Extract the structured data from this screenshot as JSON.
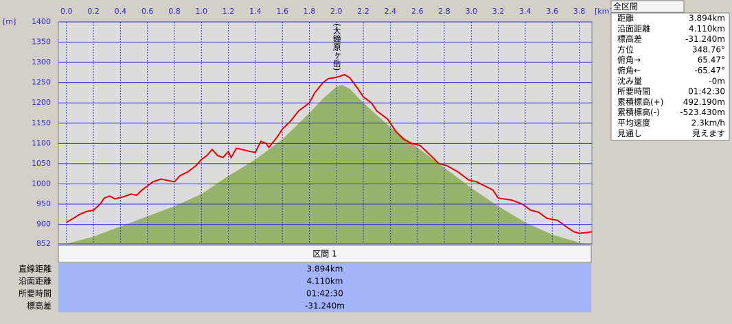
{
  "chart_data": {
    "type": "line",
    "x_unit": "[km]",
    "y_unit": "[m]",
    "annotation": "(大鐘原ヶ岳)",
    "annotation_x": 2.0,
    "xlim": [
      -0.06,
      3.894
    ],
    "ylim": [
      852,
      1400
    ],
    "xticks": [
      {
        "value": 0,
        "label": "0.0"
      },
      0.2,
      0.4,
      0.6,
      0.8,
      {
        "value": 1,
        "label": "1.0"
      },
      1.2,
      1.4,
      1.6,
      1.8,
      {
        "value": 2,
        "label": "2.0"
      },
      2.2,
      2.4,
      2.6,
      2.8,
      {
        "value": 3,
        "label": "3.0"
      },
      3.2,
      3.4,
      3.6,
      3.8
    ],
    "yticks": [
      852,
      900,
      950,
      1000,
      1050,
      1100,
      1150,
      1200,
      1250,
      1300,
      1350,
      1400
    ],
    "grid": true,
    "series": [
      {
        "color": "#98b46c",
        "fill": true,
        "x": [
          0,
          0.2,
          0.4,
          0.6,
          0.8,
          1.0,
          1.2,
          1.4,
          1.6,
          1.8,
          1.9,
          2.0,
          2.04,
          2.1,
          2.2,
          2.4,
          2.6,
          2.8,
          3.0,
          3.2,
          3.4,
          3.6,
          3.8,
          3.85
        ],
        "values": [
          852,
          870,
          895,
          920,
          945,
          975,
          1020,
          1060,
          1110,
          1175,
          1210,
          1240,
          1245,
          1235,
          1200,
          1140,
          1090,
          1040,
          990,
          945,
          905,
          875,
          855,
          852
        ]
      },
      {
        "color": "#e80000",
        "fill": false,
        "x": [
          0,
          0.05,
          0.1,
          0.15,
          0.2,
          0.25,
          0.28,
          0.32,
          0.36,
          0.42,
          0.48,
          0.52,
          0.56,
          0.6,
          0.64,
          0.7,
          0.76,
          0.8,
          0.84,
          0.9,
          0.96,
          1.0,
          1.04,
          1.08,
          1.12,
          1.16,
          1.2,
          1.22,
          1.26,
          1.3,
          1.36,
          1.4,
          1.44,
          1.48,
          1.5,
          1.56,
          1.6,
          1.66,
          1.72,
          1.76,
          1.8,
          1.84,
          1.9,
          1.94,
          1.98,
          2.02,
          2.06,
          2.1,
          2.16,
          2.2,
          2.26,
          2.3,
          2.38,
          2.44,
          2.5,
          2.56,
          2.62,
          2.7,
          2.76,
          2.82,
          2.9,
          2.98,
          3.04,
          3.1,
          3.16,
          3.2,
          3.3,
          3.38,
          3.44,
          3.5,
          3.56,
          3.64,
          3.7,
          3.76,
          3.8,
          3.86,
          3.894
        ],
        "values": [
          905,
          915,
          925,
          932,
          935,
          950,
          965,
          970,
          963,
          968,
          975,
          972,
          985,
          995,
          1005,
          1012,
          1008,
          1005,
          1020,
          1030,
          1045,
          1060,
          1070,
          1085,
          1070,
          1065,
          1080,
          1065,
          1088,
          1085,
          1080,
          1078,
          1105,
          1100,
          1090,
          1115,
          1135,
          1155,
          1180,
          1190,
          1200,
          1225,
          1250,
          1260,
          1262,
          1265,
          1270,
          1262,
          1235,
          1215,
          1200,
          1180,
          1160,
          1130,
          1110,
          1100,
          1095,
          1070,
          1050,
          1045,
          1030,
          1010,
          1005,
          995,
          985,
          965,
          960,
          950,
          935,
          930,
          915,
          910,
          895,
          882,
          878,
          880,
          882
        ]
      }
    ]
  },
  "summary": {
    "title": "全区間",
    "rows": [
      [
        "距離",
        "3.894km"
      ],
      [
        "沿面距離",
        "4.110km"
      ],
      [
        "標高差",
        "-31.240m"
      ],
      [
        "方位",
        "348.76°"
      ],
      [
        "俯角→",
        "65.47°"
      ],
      [
        "俯角←",
        "-65.47°"
      ],
      [
        "沈み量",
        "-0m"
      ],
      [
        "所要時間",
        "01:42:30"
      ],
      [
        "累積標高(+)",
        "492.190m"
      ],
      [
        "累積標高(-)",
        "-523.430m"
      ],
      [
        "平均速度",
        "2.3km/h"
      ],
      [
        "見通し",
        "見えます"
      ]
    ]
  },
  "section": {
    "header": "区間 1",
    "rows": [
      [
        "直線距離",
        "3.894km"
      ],
      [
        "沿面距離",
        "4.110km"
      ],
      [
        "所要時間",
        "01:42:30"
      ],
      [
        "標高差",
        "-31.240m"
      ]
    ]
  }
}
